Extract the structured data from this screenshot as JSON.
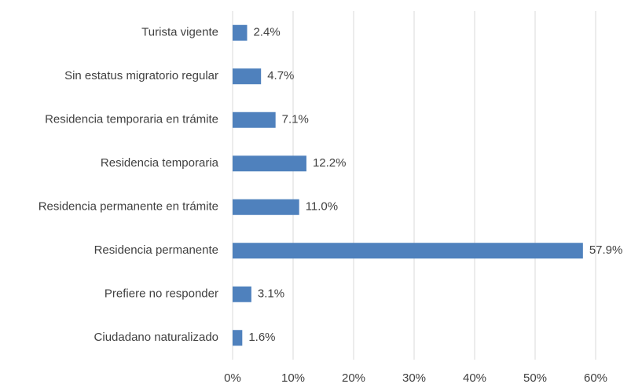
{
  "chart_data": {
    "type": "barh",
    "categories": [
      "Turista vigente",
      "Sin estatus migratorio regular",
      "Residencia temporaria en trámite",
      "Residencia temporaria",
      "Residencia permanente en trámite",
      "Residencia permanente",
      "Prefiere no responder",
      "Ciudadano naturalizado"
    ],
    "values": [
      2.4,
      4.7,
      7.1,
      12.2,
      11.0,
      57.9,
      3.1,
      1.6
    ],
    "value_labels": [
      "2.4%",
      "4.7%",
      "7.1%",
      "12.2%",
      "11.0%",
      "57.9%",
      "3.1%",
      "1.6%"
    ],
    "color": "#4f81bd",
    "xlim": [
      0,
      60
    ],
    "xticks": [
      {
        "value": 0,
        "label": "0%"
      },
      {
        "value": 10,
        "label": "10%"
      },
      {
        "value": 20,
        "label": "20%"
      },
      {
        "value": 30,
        "label": "30%"
      },
      {
        "value": 40,
        "label": "40%"
      },
      {
        "value": 50,
        "label": "50%"
      },
      {
        "value": 60,
        "label": "60%"
      }
    ],
    "grid": true
  }
}
